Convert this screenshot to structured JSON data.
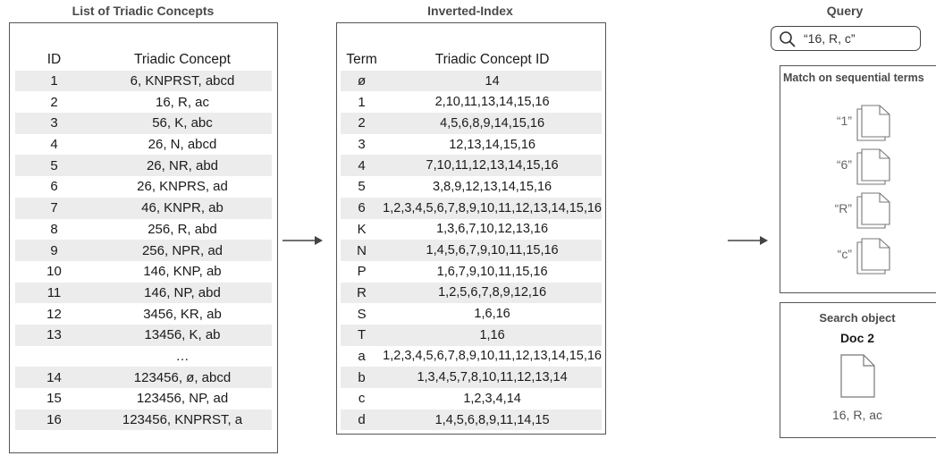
{
  "left": {
    "title": "List of Triadic Concepts",
    "headers": [
      "ID",
      "Triadic Concept"
    ],
    "rows": [
      {
        "id": "1",
        "concept": "6, KNPRST, abcd"
      },
      {
        "id": "2",
        "concept": "16, R, ac"
      },
      {
        "id": "3",
        "concept": "56, K, abc"
      },
      {
        "id": "4",
        "concept": "26, N, abcd"
      },
      {
        "id": "5",
        "concept": "26, NR, abd"
      },
      {
        "id": "6",
        "concept": "26, KNPRS, ad"
      },
      {
        "id": "7",
        "concept": "46, KNPR, ab"
      },
      {
        "id": "8",
        "concept": "256, R, abd"
      },
      {
        "id": "9",
        "concept": "256, NPR, ad"
      },
      {
        "id": "10",
        "concept": "146, KNP, ab"
      },
      {
        "id": "11",
        "concept": "146, NP, abd"
      },
      {
        "id": "12",
        "concept": "3456, KR, ab"
      },
      {
        "id": "13",
        "concept": "13456, K, ab"
      },
      {
        "id": "",
        "concept": "…"
      },
      {
        "id": "14",
        "concept": "123456, ø, abcd"
      },
      {
        "id": "15",
        "concept": "123456, NP, ad"
      },
      {
        "id": "16",
        "concept": "123456, KNPRST, a"
      }
    ]
  },
  "middle": {
    "title": "Inverted-Index",
    "headers": [
      "Term",
      "Triadic Concept ID"
    ],
    "rows": [
      {
        "term": "ø",
        "ids": "14"
      },
      {
        "term": "1",
        "ids": "2,10,11,13,14,15,16"
      },
      {
        "term": "2",
        "ids": "4,5,6,8,9,14,15,16"
      },
      {
        "term": "3",
        "ids": "12,13,14,15,16"
      },
      {
        "term": "4",
        "ids": "7,10,11,12,13,14,15,16"
      },
      {
        "term": "5",
        "ids": "3,8,9,12,13,14,15,16"
      },
      {
        "term": "6",
        "ids": "1,2,3,4,5,6,7,8,9,10,11,12,13,14,15,16"
      },
      {
        "term": "K",
        "ids": "1,3,6,7,10,12,13,16"
      },
      {
        "term": "N",
        "ids": "1,4,5,6,7,9,10,11,15,16"
      },
      {
        "term": "P",
        "ids": "1,6,7,9,10,11,15,16"
      },
      {
        "term": "R",
        "ids": "1,2,5,6,7,8,9,12,16"
      },
      {
        "term": "S",
        "ids": "1,6,16"
      },
      {
        "term": "T",
        "ids": "1,16"
      },
      {
        "term": "a",
        "ids": "1,2,3,4,5,6,7,8,9,10,11,12,13,14,15,16"
      },
      {
        "term": "b",
        "ids": "1,3,4,5,7,8,10,11,12,13,14"
      },
      {
        "term": "c",
        "ids": "1,2,3,4,14"
      },
      {
        "term": "d",
        "ids": "1,4,5,6,8,9,11,14,15"
      }
    ]
  },
  "query": {
    "title": "Query",
    "text": "“16, R, c”",
    "icon": "search-icon"
  },
  "match": {
    "title": "Match on sequential terms",
    "items": [
      "“1”",
      "“6”",
      "“R”",
      "“c”"
    ]
  },
  "search_object": {
    "title": "Search object",
    "doc_title": "Doc 2",
    "doc_content": "16, R, ac"
  }
}
